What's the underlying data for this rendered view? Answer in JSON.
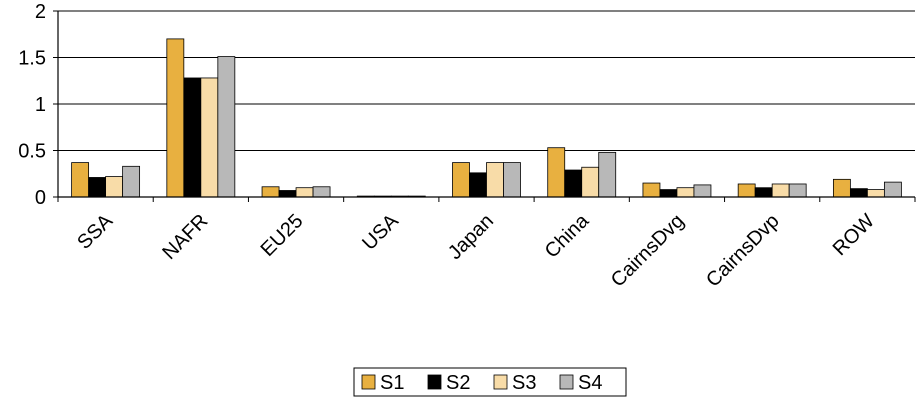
{
  "chart_data": {
    "type": "bar",
    "categories": [
      "SSA",
      "NAFR",
      "EU25",
      "USA",
      "Japan",
      "China",
      "CairnsDvg",
      "CairnsDvp",
      "ROW"
    ],
    "series": [
      {
        "name": "S1",
        "color": "#e8b040",
        "values": [
          0.37,
          1.7,
          0.11,
          0.01,
          0.37,
          0.53,
          0.15,
          0.14,
          0.19
        ]
      },
      {
        "name": "S2",
        "color": "#000000",
        "values": [
          0.21,
          1.28,
          0.07,
          0.01,
          0.26,
          0.29,
          0.08,
          0.1,
          0.09
        ]
      },
      {
        "name": "S3",
        "color": "#f8dca8",
        "values": [
          0.22,
          1.28,
          0.1,
          0.01,
          0.37,
          0.32,
          0.1,
          0.14,
          0.08
        ]
      },
      {
        "name": "S4",
        "color": "#b8b8b8",
        "values": [
          0.33,
          1.51,
          0.11,
          0.01,
          0.37,
          0.48,
          0.13,
          0.14,
          0.16
        ]
      }
    ],
    "yticks": [
      "0",
      "0.5",
      "1",
      "1.5",
      "2"
    ],
    "ylim": [
      0,
      2
    ],
    "grid": true,
    "legend": "bottom-center",
    "title": "",
    "xlabel": "",
    "ylabel": ""
  }
}
